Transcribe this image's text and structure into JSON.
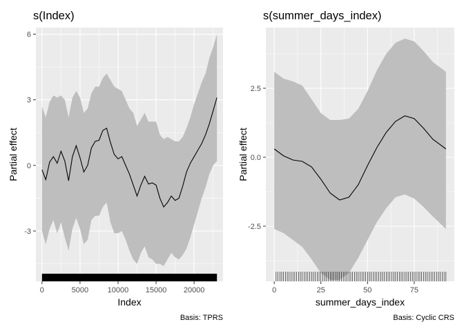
{
  "chart_data": [
    {
      "type": "line",
      "title": "s(Index)",
      "xlabel": "Index",
      "ylabel": "Partial effect",
      "caption": "Basis: TPRS",
      "xlim": [
        -800,
        23800
      ],
      "ylim": [
        -5.3,
        6.3
      ],
      "x_ticks": [
        0,
        5000,
        10000,
        15000,
        20000
      ],
      "x_tick_labels": [
        "0",
        "5000",
        "10000",
        "15000",
        "20000"
      ],
      "y_ticks": [
        -3,
        0,
        3,
        6
      ],
      "y_tick_labels": [
        "-3",
        "0",
        "3",
        "6"
      ],
      "rug": {
        "type": "dense",
        "from": 0,
        "to": 23000,
        "y_bottom": -5.3,
        "y_top": -4.95
      },
      "series": [
        {
          "x": [
            0,
            500,
            1000,
            1500,
            2000,
            2500,
            3000,
            3500,
            4000,
            4500,
            5000,
            5500,
            6000,
            6500,
            7000,
            7500,
            8000,
            8500,
            9000,
            9500,
            10000,
            10500,
            11000,
            11500,
            12000,
            12500,
            13000,
            13500,
            14000,
            14500,
            15000,
            15500,
            16000,
            16500,
            17000,
            17500,
            18000,
            18500,
            19000,
            19500,
            20000,
            20500,
            21000,
            21500,
            22000,
            22500,
            23000
          ],
          "y": [
            -0.2,
            -0.65,
            0.15,
            0.4,
            0.1,
            0.65,
            0.2,
            -0.7,
            0.4,
            0.9,
            0.35,
            -0.3,
            0.0,
            0.8,
            1.1,
            1.15,
            1.6,
            1.7,
            1.05,
            0.5,
            0.3,
            0.4,
            0.0,
            -0.4,
            -0.9,
            -1.4,
            -0.9,
            -0.5,
            -0.85,
            -0.8,
            -0.9,
            -1.5,
            -1.9,
            -1.7,
            -1.4,
            -1.6,
            -1.5,
            -0.95,
            -0.3,
            0.1,
            0.4,
            0.7,
            1.0,
            1.4,
            1.9,
            2.5,
            3.1
          ],
          "lower": [
            -3.0,
            -3.6,
            -2.9,
            -2.5,
            -3.1,
            -2.6,
            -3.3,
            -3.9,
            -2.9,
            -2.4,
            -2.9,
            -3.6,
            -3.4,
            -2.5,
            -2.3,
            -2.3,
            -1.9,
            -1.7,
            -2.6,
            -3.1,
            -3.1,
            -3.0,
            -3.4,
            -3.9,
            -4.3,
            -4.5,
            -4.0,
            -3.7,
            -4.2,
            -4.3,
            -4.5,
            -4.5,
            -4.6,
            -4.3,
            -4.0,
            -4.2,
            -4.3,
            -4.1,
            -3.8,
            -3.3,
            -2.7,
            -2.1,
            -1.5,
            -1.0,
            -0.4,
            0.0,
            0.2
          ],
          "upper": [
            2.7,
            2.2,
            2.9,
            3.2,
            3.1,
            3.2,
            3.0,
            2.2,
            3.1,
            3.4,
            3.1,
            2.4,
            2.6,
            3.3,
            3.6,
            3.6,
            4.0,
            4.2,
            3.9,
            3.6,
            3.5,
            3.4,
            3.0,
            2.6,
            2.4,
            1.8,
            2.1,
            2.4,
            2.0,
            2.0,
            2.0,
            1.4,
            1.2,
            1.3,
            1.2,
            1.1,
            1.1,
            1.3,
            1.7,
            2.2,
            2.8,
            3.3,
            3.8,
            4.2,
            4.9,
            5.4,
            6.0
          ]
        }
      ]
    },
    {
      "type": "line",
      "title": "s(summer_days_index)",
      "xlabel": "summer_days_index",
      "ylabel": "Partial effect",
      "caption": "Basis: Cyclic CRS",
      "xlim": [
        -4.5,
        96.5
      ],
      "ylim": [
        -4.5,
        4.7
      ],
      "x_ticks": [
        0,
        25,
        50,
        75
      ],
      "x_tick_labels": [
        "0",
        "25",
        "50",
        "75"
      ],
      "y_ticks": [
        -2.5,
        0.0,
        2.5
      ],
      "y_tick_labels": [
        "-2.5",
        "0.0",
        "2.5"
      ],
      "rug": {
        "type": "ticks",
        "from": 1,
        "to": 92,
        "step": 1,
        "y_bottom": -4.5,
        "y_top": -4.15
      },
      "series": [
        {
          "x": [
            0,
            5,
            10,
            15,
            20,
            25,
            30,
            35,
            40,
            45,
            50,
            55,
            60,
            65,
            70,
            75,
            80,
            85,
            92
          ],
          "y": [
            0.3,
            0.05,
            -0.1,
            -0.15,
            -0.35,
            -0.8,
            -1.3,
            -1.55,
            -1.45,
            -1.0,
            -0.3,
            0.35,
            0.9,
            1.3,
            1.5,
            1.4,
            1.05,
            0.65,
            0.3
          ],
          "lower": [
            -2.6,
            -2.75,
            -3.0,
            -3.25,
            -3.7,
            -4.2,
            -4.45,
            -4.45,
            -4.2,
            -3.65,
            -3.0,
            -2.35,
            -1.85,
            -1.45,
            -1.35,
            -1.5,
            -1.8,
            -2.15,
            -2.6
          ],
          "upper": [
            3.1,
            2.85,
            2.75,
            2.6,
            2.1,
            1.6,
            1.35,
            1.35,
            1.4,
            1.75,
            2.4,
            3.15,
            3.75,
            4.15,
            4.3,
            4.2,
            3.85,
            3.45,
            3.1
          ]
        }
      ]
    }
  ]
}
